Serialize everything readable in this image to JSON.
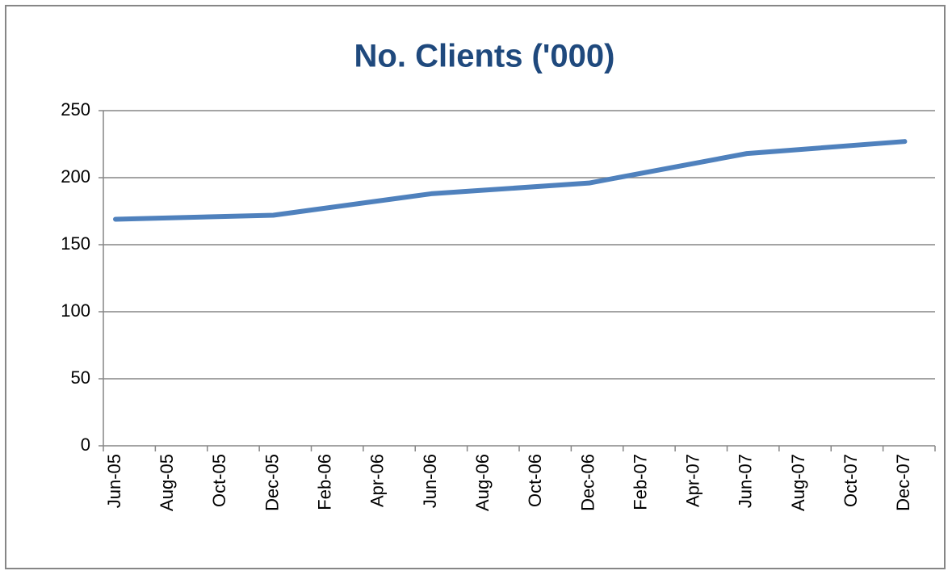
{
  "chart_data": {
    "type": "line",
    "title": "No. Clients ('000)",
    "categories": [
      "Jun-05",
      "Aug-05",
      "Oct-05",
      "Dec-05",
      "Feb-06",
      "Apr-06",
      "Jun-06",
      "Aug-06",
      "Oct-06",
      "Dec-06",
      "Feb-07",
      "Apr-07",
      "Jun-07",
      "Aug-07",
      "Oct-07",
      "Dec-07"
    ],
    "x": [
      "Jun-05",
      "Dec-05",
      "Jun-06",
      "Dec-06",
      "Jun-07",
      "Dec-07"
    ],
    "values": [
      169,
      172,
      188,
      196,
      218,
      227
    ],
    "color": "#4f81bd",
    "ylim": [
      0,
      250
    ],
    "yticks": [
      0,
      50,
      100,
      150,
      200,
      250
    ],
    "grid": true
  }
}
